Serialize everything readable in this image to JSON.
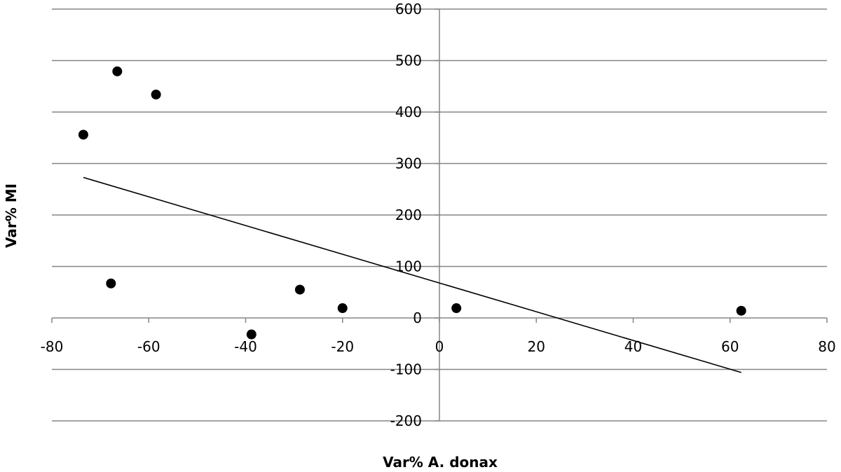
{
  "chart_data": {
    "type": "scatter",
    "title": "",
    "xlabel": "Var% A. donax",
    "ylabel": "Var% MI",
    "xlim": [
      -80,
      80
    ],
    "ylim": [
      -200,
      600
    ],
    "x_ticks": [
      -80,
      -60,
      -40,
      -20,
      0,
      20,
      40,
      60,
      80
    ],
    "y_ticks": [
      600,
      500,
      400,
      300,
      200,
      100,
      0,
      -100,
      -200
    ],
    "x_tick_labels": [
      "-80",
      "-60",
      "-40",
      "-20",
      "0",
      "20",
      "40",
      "60",
      "80"
    ],
    "y_tick_labels": [
      "600",
      "500",
      "400",
      "300",
      "200",
      "100",
      "0",
      "-100",
      "-200"
    ],
    "grid": true,
    "legend": "none",
    "series": [
      {
        "x": [
          -73.5,
          -66.5,
          -58.5,
          -67.8,
          -38.8,
          -28.8,
          -20.0,
          3.5,
          62.3
        ],
        "y": [
          356,
          479,
          434,
          67,
          -32,
          55,
          19,
          19,
          14
        ]
      }
    ],
    "trendline": {
      "type": "linear",
      "x": [
        -73.5,
        62.3
      ],
      "y": [
        273,
        -106
      ]
    },
    "colors": {
      "points": "#000000",
      "trendline": "#000000",
      "grid": "#868686"
    }
  }
}
